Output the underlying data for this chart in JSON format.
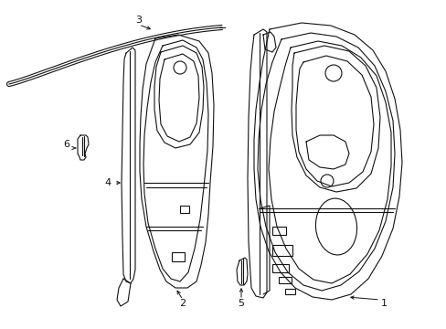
{
  "bg_color": "#ffffff",
  "line_color": "#111111",
  "lw": 0.8,
  "fig_width": 4.89,
  "fig_height": 3.6,
  "dpi": 100,
  "label_fontsize": 8
}
